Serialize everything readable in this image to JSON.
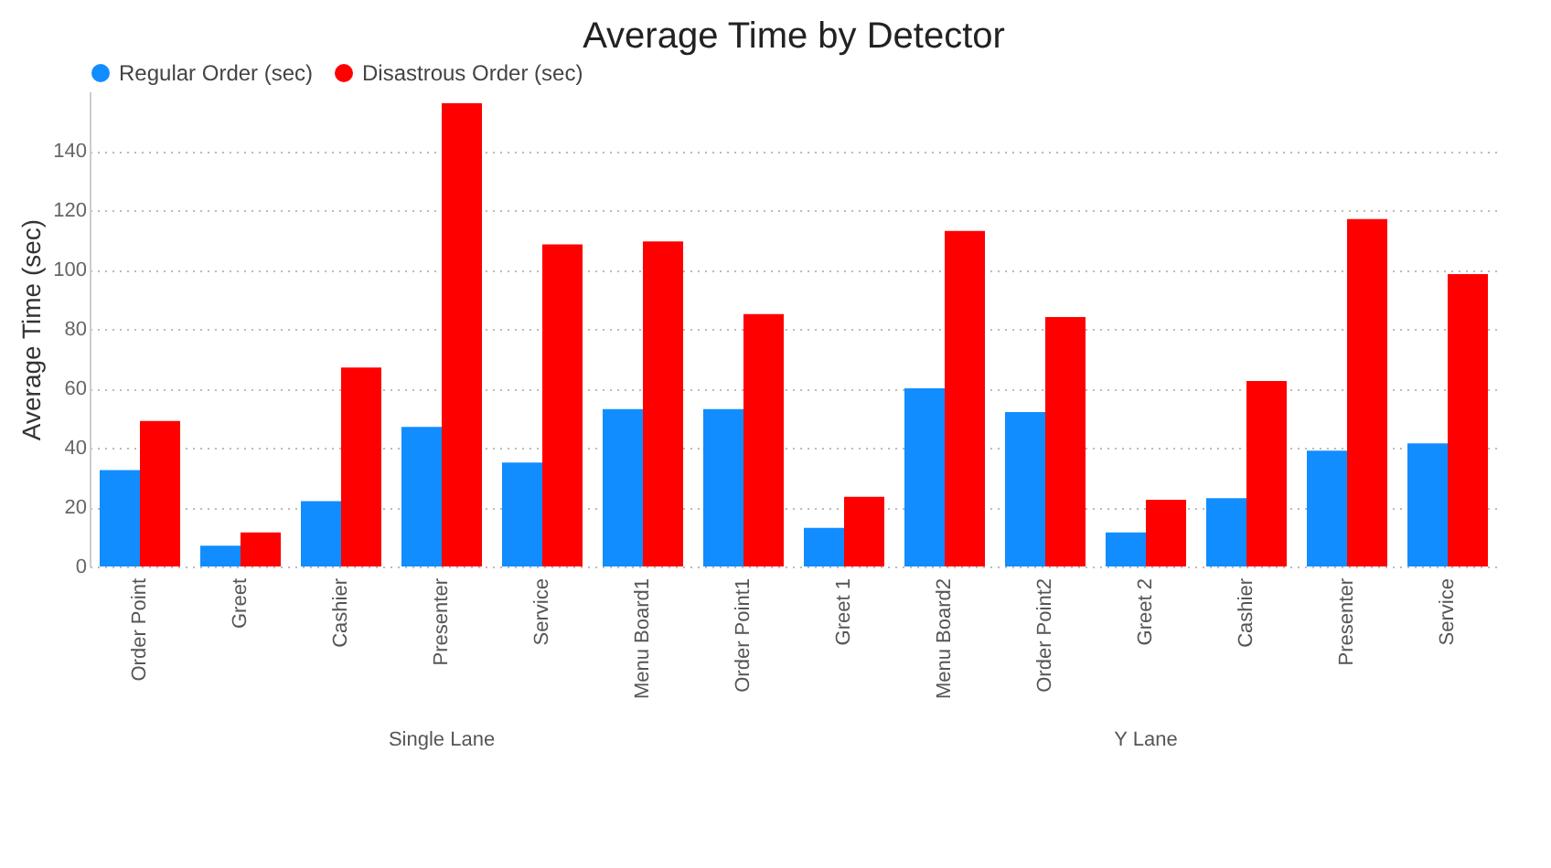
{
  "chart_data": {
    "type": "bar",
    "title": "Average Time by Detector",
    "ylabel": "Average Time (sec)",
    "categories": [
      "Order Point",
      "Greet",
      "Cashier",
      "Presenter",
      "Service",
      "Menu Board1",
      "Order Point1",
      "Greet 1",
      "Menu Board2",
      "Order Point2",
      "Greet 2",
      "Cashier",
      "Presenter",
      "Service"
    ],
    "series": [
      {
        "name": "Regular Order (sec)",
        "color": "#118dff",
        "values": [
          32.5,
          7,
          22,
          47,
          35,
          53,
          53,
          13,
          60,
          52,
          11.5,
          23,
          39,
          41.5
        ]
      },
      {
        "name": "Disastrous Order (sec)",
        "color": "#ff0000",
        "values": [
          49,
          11.5,
          67,
          156,
          108.5,
          109.5,
          85,
          23.5,
          113,
          84,
          22.5,
          62.5,
          117,
          98.5
        ]
      }
    ],
    "annotations": [
      "Single Lane",
      "Y Lane"
    ],
    "ylim": [
      0,
      160
    ],
    "yticks": [
      0,
      20,
      40,
      60,
      80,
      100,
      120,
      140
    ],
    "grid": "y",
    "legend": "top left"
  }
}
